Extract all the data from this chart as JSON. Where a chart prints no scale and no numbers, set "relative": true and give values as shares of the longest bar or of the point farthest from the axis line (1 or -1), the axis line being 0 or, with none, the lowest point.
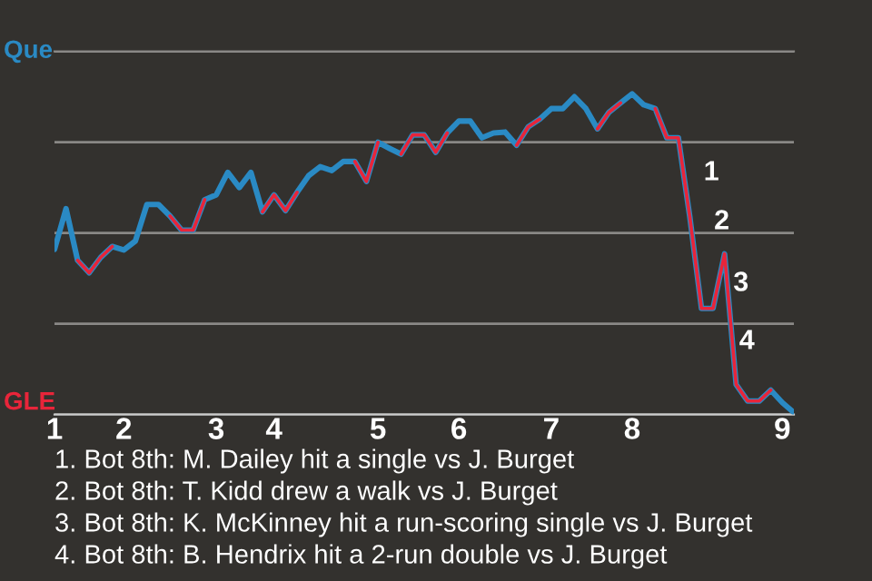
{
  "chart_data": {
    "type": "line",
    "relative": true,
    "categories": [
      "1",
      null,
      null,
      null,
      null,
      null,
      "2",
      null,
      null,
      null,
      null,
      null,
      null,
      null,
      "3",
      null,
      null,
      null,
      null,
      "4",
      null,
      null,
      null,
      null,
      null,
      null,
      null,
      null,
      "5",
      null,
      null,
      null,
      null,
      null,
      null,
      "6",
      null,
      null,
      null,
      null,
      null,
      null,
      null,
      "7",
      null,
      null,
      null,
      null,
      null,
      null,
      "8",
      null,
      null,
      null,
      null,
      null,
      null,
      null,
      null,
      null,
      null,
      null,
      null,
      "9",
      null
    ],
    "series": [
      {
        "color": "#2a8ac4",
        "values": [
          0.515,
          0.642,
          0.481,
          0.442,
          0.49,
          0.524,
          0.513,
          0.541,
          0.655,
          0.655,
          0.619,
          0.575,
          0.575,
          0.67,
          0.685,
          0.755,
          0.708,
          0.755,
          0.632,
          0.685,
          0.636,
          0.693,
          0.745,
          0.773,
          0.761,
          0.789,
          0.789,
          0.727,
          0.849,
          0.83,
          0.812,
          0.872,
          0.872,
          0.818,
          0.878,
          0.915,
          0.915,
          0.863,
          0.878,
          0.881,
          0.84,
          0.897,
          0.921,
          0.954,
          0.954,
          0.991,
          0.954,
          0.891,
          0.943,
          0.972,
          1,
          0.966,
          0.954,
          0.863,
          0.863,
          0.614,
          0.331,
          0.331,
          0.501,
          0.094,
          0.042,
          0.042,
          0.076,
          0.037,
          0.006
        ]
      },
      {
        "color": "#e8253a",
        "values": [
          null,
          null,
          0.481,
          0.442,
          0.49,
          0.524,
          null,
          null,
          null,
          null,
          0.619,
          0.575,
          0.575,
          0.67,
          null,
          null,
          null,
          null,
          0.632,
          0.685,
          0.636,
          0.693,
          null,
          null,
          null,
          null,
          0.789,
          0.727,
          0.849,
          null,
          0.812,
          0.872,
          0.872,
          0.818,
          0.878,
          null,
          null,
          null,
          null,
          null,
          0.84,
          0.897,
          0.921,
          null,
          null,
          null,
          null,
          0.891,
          0.943,
          0.972,
          null,
          null,
          0.954,
          0.863,
          0.863,
          0.614,
          0.331,
          0.331,
          0.501,
          0.094,
          0.042,
          0.042,
          0.076,
          null,
          null
        ]
      }
    ],
    "grid": "y",
    "marker": "none",
    "line_style": "solid",
    "annotations": [
      "Que",
      "GLE",
      "1",
      "2",
      "3",
      "4",
      "1. Bot 8th: M. Dailey hit a single vs J. Burget",
      "2. Bot 8th: T. Kidd drew a walk vs J. Burget",
      "3. Bot 8th: K. McKinney hit a run-scoring single vs J. Burget",
      "4. Bot 8th: B. Hendrix hit a 2-run double vs J. Burget"
    ]
  }
}
